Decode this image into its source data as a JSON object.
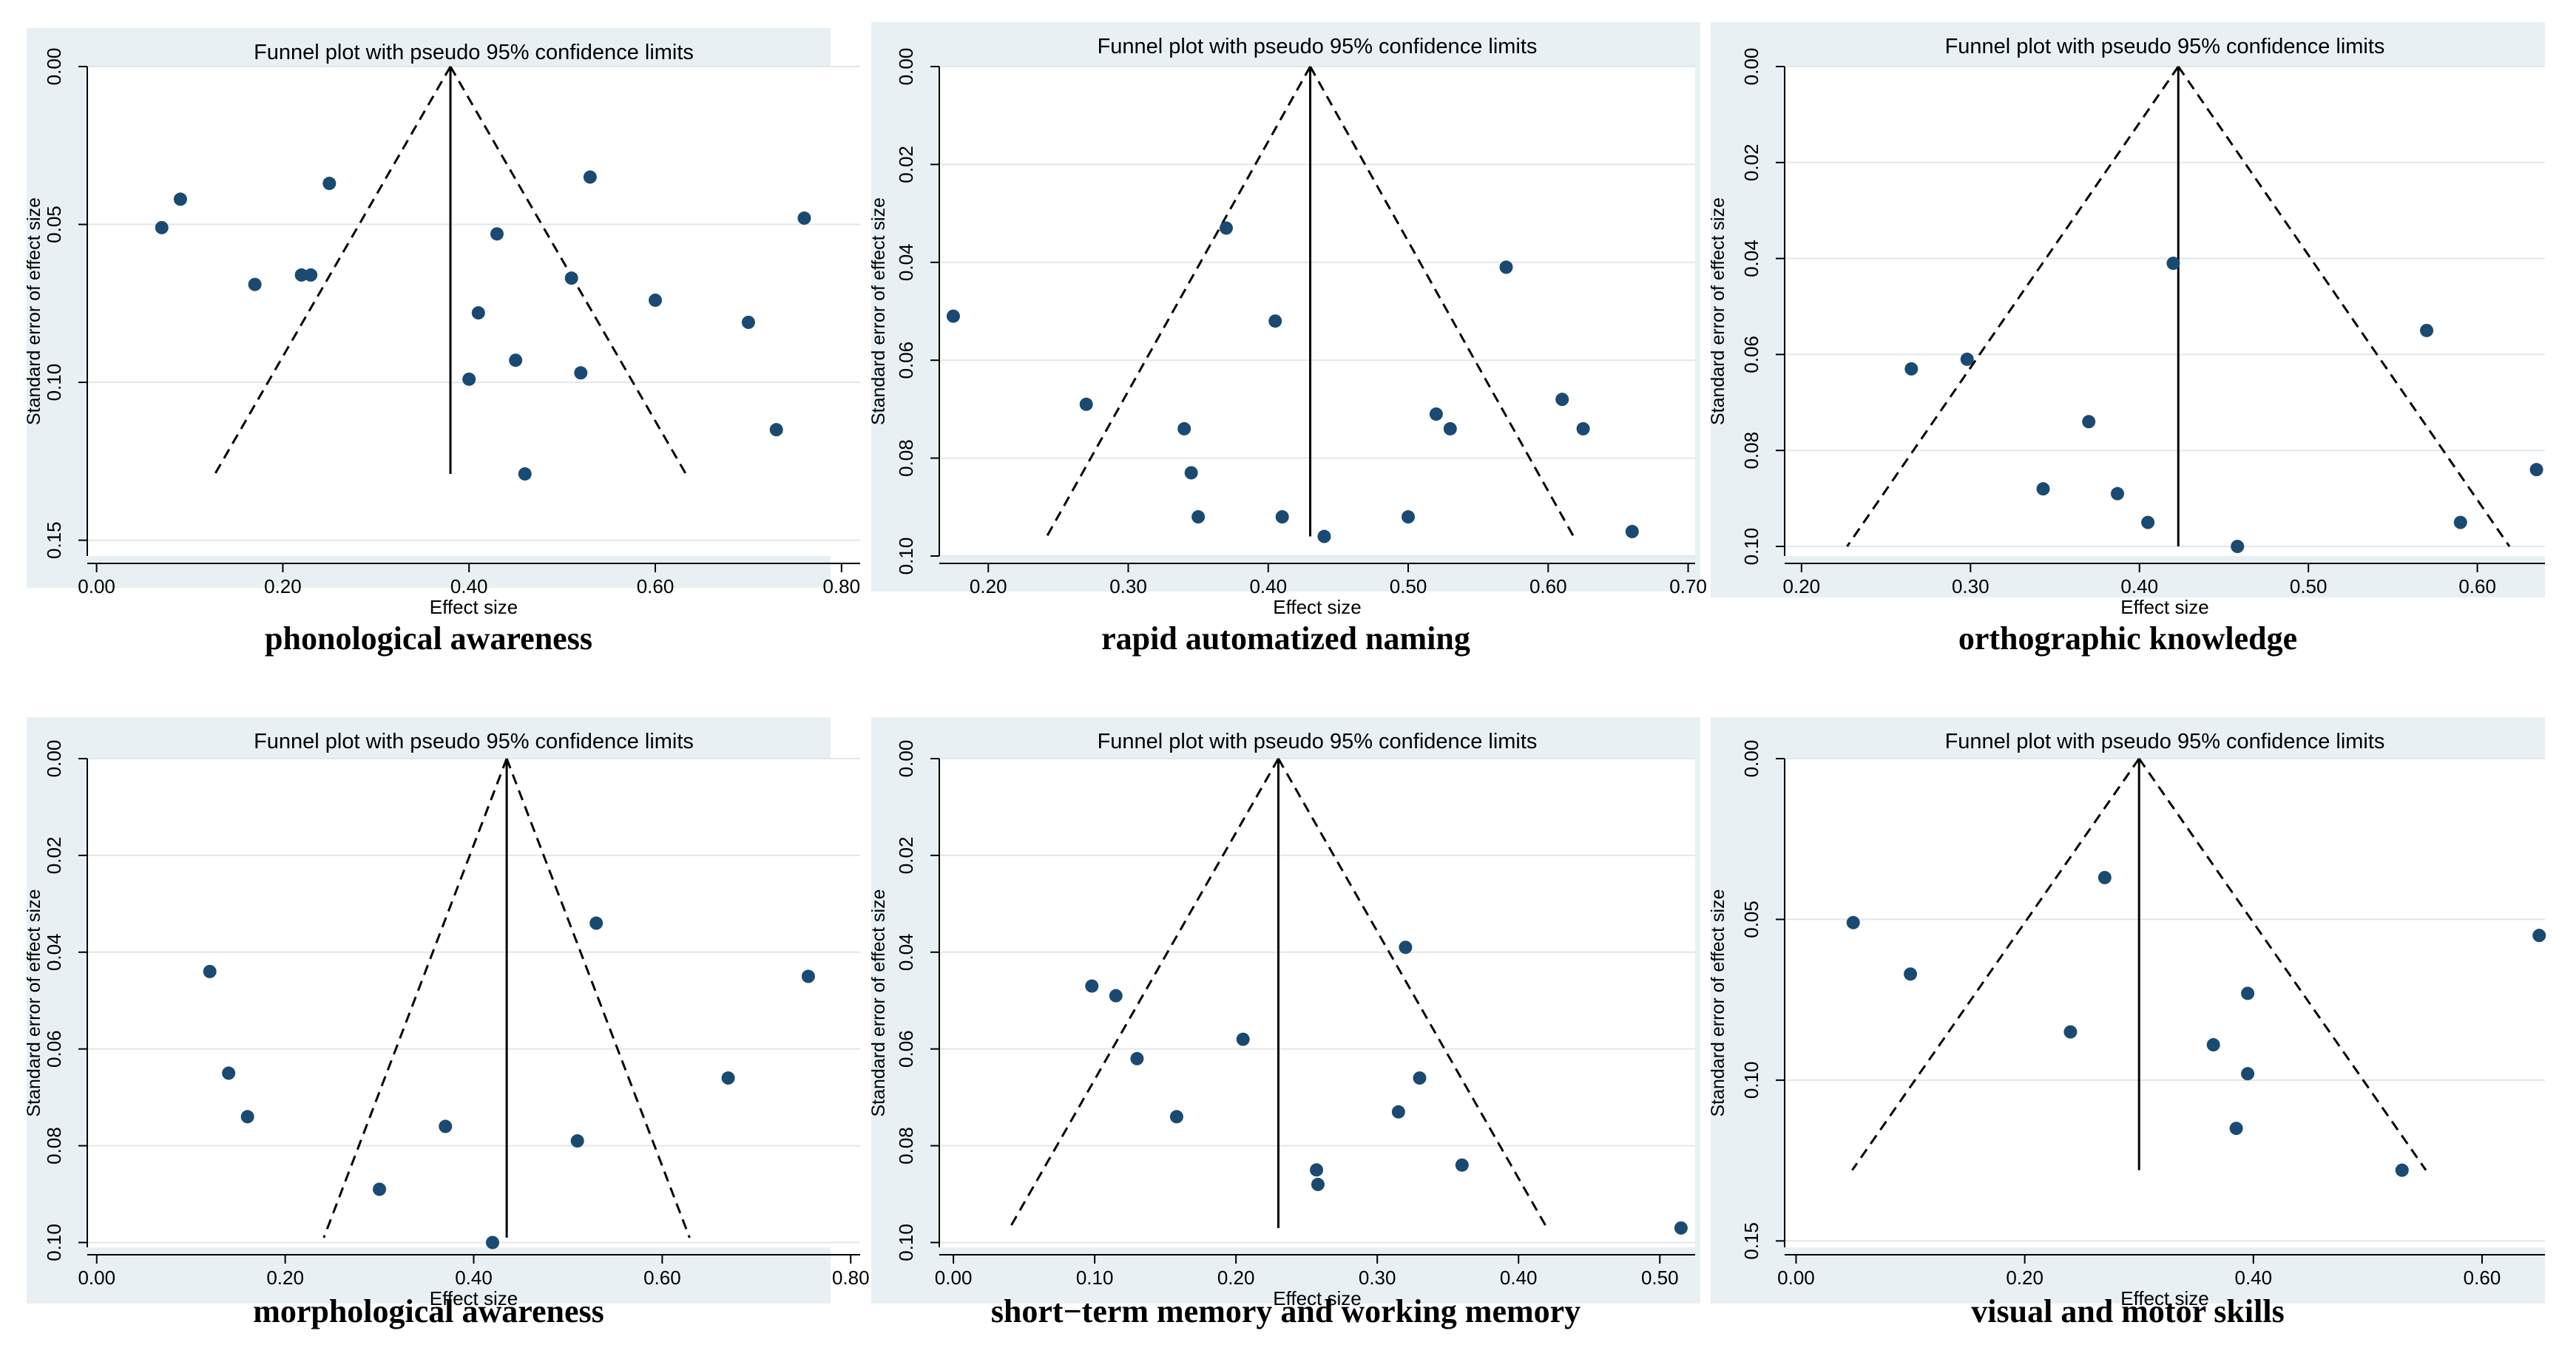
{
  "colors": {
    "panel_bg": "#e9f0f3",
    "plot_bg": "#ffffff",
    "gridline": "#e1e7ea",
    "marker": "#1a4a72",
    "line": "#000000"
  },
  "chart_data": [
    {
      "type": "scatter",
      "subtype": "funnel",
      "title": "Funnel plot with pseudo 95% confidence limits",
      "xlabel": "Effect size",
      "ylabel": "Standard error of effect size",
      "caption": "phonological awareness",
      "xlim": [
        -0.01,
        0.82
      ],
      "ylim": [
        0.0,
        0.155
      ],
      "y_reversed": true,
      "xticks": [
        "0.00",
        "0.20",
        "0.40",
        "0.60",
        "0.80"
      ],
      "yticks": [
        "0.00",
        "0.05",
        "0.10",
        "0.15"
      ],
      "pooled_effect": 0.38,
      "funnel_max_se": 0.129,
      "points": [
        [
          0.07,
          0.051
        ],
        [
          0.09,
          0.042
        ],
        [
          0.17,
          0.069
        ],
        [
          0.22,
          0.066
        ],
        [
          0.23,
          0.066
        ],
        [
          0.25,
          0.037
        ],
        [
          0.41,
          0.078
        ],
        [
          0.4,
          0.099
        ],
        [
          0.43,
          0.053
        ],
        [
          0.45,
          0.093
        ],
        [
          0.46,
          0.129
        ],
        [
          0.51,
          0.067
        ],
        [
          0.52,
          0.097
        ],
        [
          0.53,
          0.035
        ],
        [
          0.6,
          0.074
        ],
        [
          0.7,
          0.081
        ],
        [
          0.73,
          0.115
        ],
        [
          0.76,
          0.048
        ]
      ]
    },
    {
      "type": "scatter",
      "subtype": "funnel",
      "title": "Funnel plot with pseudo 95% confidence limits",
      "xlabel": "Effect size",
      "ylabel": "Standard error of effect size",
      "caption": "rapid automatized naming",
      "xlim": [
        0.165,
        0.705
      ],
      "ylim": [
        0.0,
        0.1
      ],
      "y_reversed": true,
      "xticks": [
        "0.20",
        "0.30",
        "0.40",
        "0.50",
        "0.60",
        "0.70"
      ],
      "yticks": [
        "0.00",
        "0.02",
        "0.04",
        "0.06",
        "0.08",
        "0.10"
      ],
      "pooled_effect": 0.43,
      "funnel_max_se": 0.096,
      "points": [
        [
          0.175,
          0.051
        ],
        [
          0.27,
          0.069
        ],
        [
          0.37,
          0.033
        ],
        [
          0.34,
          0.074
        ],
        [
          0.345,
          0.083
        ],
        [
          0.35,
          0.092
        ],
        [
          0.405,
          0.052
        ],
        [
          0.41,
          0.092
        ],
        [
          0.44,
          0.096
        ],
        [
          0.5,
          0.092
        ],
        [
          0.52,
          0.071
        ],
        [
          0.53,
          0.074
        ],
        [
          0.57,
          0.041
        ],
        [
          0.61,
          0.068
        ],
        [
          0.625,
          0.074
        ],
        [
          0.66,
          0.095
        ]
      ]
    },
    {
      "type": "scatter",
      "subtype": "funnel",
      "title": "Funnel plot with pseudo 95% confidence limits",
      "xlabel": "Effect size",
      "ylabel": "Standard error of effect size",
      "caption": "orthographic knowledge",
      "xlim": [
        0.19,
        0.64
      ],
      "ylim": [
        0.0,
        0.102
      ],
      "y_reversed": true,
      "xticks": [
        "0.20",
        "0.30",
        "0.40",
        "0.50",
        "0.60"
      ],
      "yticks": [
        "0.00",
        "0.02",
        "0.04",
        "0.06",
        "0.08",
        "0.10"
      ],
      "pooled_effect": 0.423,
      "funnel_max_se": 0.1,
      "points": [
        [
          0.265,
          0.063
        ],
        [
          0.298,
          0.061
        ],
        [
          0.343,
          0.088
        ],
        [
          0.37,
          0.074
        ],
        [
          0.387,
          0.089
        ],
        [
          0.405,
          0.095
        ],
        [
          0.42,
          0.041
        ],
        [
          0.458,
          0.1
        ],
        [
          0.57,
          0.055
        ],
        [
          0.59,
          0.095
        ],
        [
          0.635,
          0.084
        ]
      ]
    },
    {
      "type": "scatter",
      "subtype": "funnel",
      "title": "Funnel plot with pseudo 95% confidence limits",
      "xlabel": "Effect size",
      "ylabel": "Standard error of effect size",
      "caption": "morphological awareness",
      "xlim": [
        -0.01,
        0.81
      ],
      "ylim": [
        0.0,
        0.101
      ],
      "y_reversed": true,
      "xticks": [
        "0.00",
        "0.20",
        "0.40",
        "0.60",
        "0.80"
      ],
      "yticks": [
        "0.00",
        "0.02",
        "0.04",
        "0.06",
        "0.08",
        "0.10"
      ],
      "pooled_effect": 0.435,
      "funnel_max_se": 0.099,
      "points": [
        [
          0.12,
          0.044
        ],
        [
          0.14,
          0.065
        ],
        [
          0.16,
          0.074
        ],
        [
          0.3,
          0.089
        ],
        [
          0.37,
          0.076
        ],
        [
          0.42,
          0.1
        ],
        [
          0.51,
          0.079
        ],
        [
          0.53,
          0.034
        ],
        [
          0.67,
          0.066
        ],
        [
          0.755,
          0.045
        ]
      ]
    },
    {
      "type": "scatter",
      "subtype": "funnel",
      "title": "Funnel plot with pseudo 95% confidence limits",
      "xlabel": "Effect size",
      "ylabel": "Standard error of effect size",
      "caption": "short−term memory and working memory",
      "xlim": [
        -0.01,
        0.525
      ],
      "ylim": [
        0.0,
        0.101
      ],
      "y_reversed": true,
      "xticks": [
        "0.00",
        "0.10",
        "0.20",
        "0.30",
        "0.40",
        "0.50"
      ],
      "yticks": [
        "0.00",
        "0.02",
        "0.04",
        "0.06",
        "0.08",
        "0.10"
      ],
      "pooled_effect": 0.23,
      "funnel_max_se": 0.097,
      "points": [
        [
          0.098,
          0.047
        ],
        [
          0.115,
          0.049
        ],
        [
          0.13,
          0.062
        ],
        [
          0.158,
          0.074
        ],
        [
          0.205,
          0.058
        ],
        [
          0.257,
          0.085
        ],
        [
          0.258,
          0.088
        ],
        [
          0.315,
          0.073
        ],
        [
          0.32,
          0.039
        ],
        [
          0.33,
          0.066
        ],
        [
          0.36,
          0.084
        ],
        [
          0.515,
          0.097
        ]
      ]
    },
    {
      "type": "scatter",
      "subtype": "funnel",
      "title": "Funnel plot with pseudo 95% confidence limits",
      "xlabel": "Effect size",
      "ylabel": "Standard error of effect size",
      "caption": "visual and motor skills",
      "xlim": [
        -0.01,
        0.655
      ],
      "ylim": [
        0.0,
        0.152
      ],
      "y_reversed": true,
      "xticks": [
        "0.00",
        "0.20",
        "0.40",
        "0.60"
      ],
      "yticks": [
        "0.00",
        "0.05",
        "0.10",
        "0.15"
      ],
      "pooled_effect": 0.3,
      "funnel_max_se": 0.128,
      "points": [
        [
          0.05,
          0.051
        ],
        [
          0.1,
          0.067
        ],
        [
          0.24,
          0.085
        ],
        [
          0.27,
          0.037
        ],
        [
          0.365,
          0.089
        ],
        [
          0.385,
          0.115
        ],
        [
          0.395,
          0.073
        ],
        [
          0.395,
          0.098
        ],
        [
          0.53,
          0.128
        ],
        [
          0.65,
          0.055
        ]
      ]
    }
  ]
}
